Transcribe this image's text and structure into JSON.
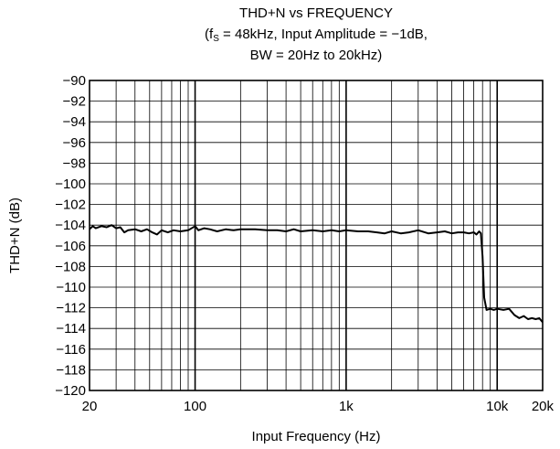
{
  "chart_data": {
    "type": "line",
    "title": "THD+N vs FREQUENCY",
    "subtitle_line1": {
      "prefix": "(f",
      "subscript": "S",
      "suffix": " = 48kHz, Input Amplitude = −1dB,"
    },
    "subtitle_line2": "BW = 20Hz to 20kHz)",
    "xlabel": "Input Frequency (Hz)",
    "ylabel": "THD+N (dB)",
    "x_scale": "log",
    "xlim": [
      20,
      20000
    ],
    "ylim": [
      -120,
      -90
    ],
    "grid": true,
    "x_ticks": [
      {
        "value": 20,
        "label": "20"
      },
      {
        "value": 100,
        "label": "100"
      },
      {
        "value": 1000,
        "label": "1k"
      },
      {
        "value": 10000,
        "label": "10k"
      },
      {
        "value": 20000,
        "label": "20k"
      }
    ],
    "y_ticks": [
      {
        "value": -90,
        "label": "−90"
      },
      {
        "value": -92,
        "label": "−92"
      },
      {
        "value": -94,
        "label": "−94"
      },
      {
        "value": -96,
        "label": "−96"
      },
      {
        "value": -98,
        "label": "−98"
      },
      {
        "value": -100,
        "label": "−100"
      },
      {
        "value": -102,
        "label": "−102"
      },
      {
        "value": -104,
        "label": "−104"
      },
      {
        "value": -106,
        "label": "−106"
      },
      {
        "value": -108,
        "label": "−108"
      },
      {
        "value": -110,
        "label": "−110"
      },
      {
        "value": -112,
        "label": "−112"
      },
      {
        "value": -114,
        "label": "−114"
      },
      {
        "value": -116,
        "label": "−116"
      },
      {
        "value": -118,
        "label": "−118"
      },
      {
        "value": -120,
        "label": "−120"
      }
    ],
    "series": [
      {
        "color": "#000000",
        "x": [
          20,
          21,
          22,
          24,
          26,
          28,
          30,
          32,
          34,
          36,
          40,
          44,
          48,
          52,
          56,
          60,
          66,
          72,
          80,
          90,
          100,
          105,
          115,
          125,
          140,
          160,
          180,
          200,
          250,
          300,
          350,
          400,
          450,
          500,
          600,
          700,
          800,
          900,
          1000,
          1200,
          1400,
          1600,
          1800,
          2000,
          2300,
          2600,
          3000,
          3500,
          4000,
          4500,
          5000,
          5500,
          6000,
          6500,
          7000,
          7300,
          7600,
          7800,
          8000,
          8200,
          8500,
          9000,
          9500,
          10000,
          11000,
          12000,
          13000,
          14000,
          15000,
          16000,
          17000,
          18000,
          19000,
          20000
        ],
        "y": [
          -104.4,
          -104.1,
          -104.3,
          -104.1,
          -104.2,
          -104.0,
          -104.3,
          -104.2,
          -104.7,
          -104.5,
          -104.4,
          -104.6,
          -104.4,
          -104.7,
          -104.9,
          -104.5,
          -104.7,
          -104.5,
          -104.6,
          -104.5,
          -104.1,
          -104.5,
          -104.3,
          -104.4,
          -104.6,
          -104.4,
          -104.5,
          -104.4,
          -104.4,
          -104.5,
          -104.5,
          -104.6,
          -104.4,
          -104.6,
          -104.5,
          -104.6,
          -104.5,
          -104.6,
          -104.5,
          -104.6,
          -104.6,
          -104.7,
          -104.8,
          -104.6,
          -104.8,
          -104.7,
          -104.5,
          -104.8,
          -104.7,
          -104.6,
          -104.8,
          -104.7,
          -104.7,
          -104.8,
          -104.7,
          -104.9,
          -104.6,
          -104.8,
          -107.0,
          -111.0,
          -112.2,
          -112.1,
          -112.2,
          -112.1,
          -112.2,
          -112.1,
          -112.7,
          -113.0,
          -112.8,
          -113.1,
          -113.0,
          -113.1,
          -113.0,
          -113.4
        ]
      }
    ]
  }
}
